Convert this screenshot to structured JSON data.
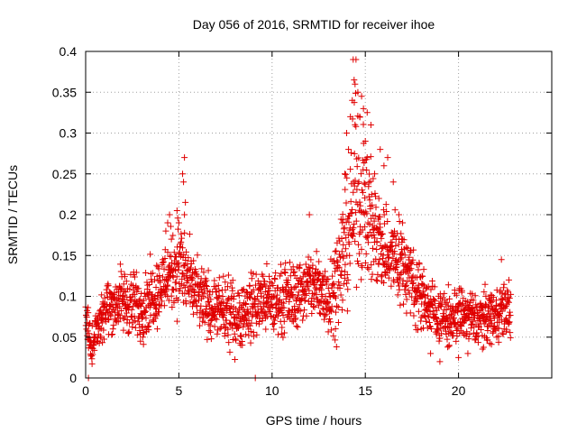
{
  "chart_data": {
    "type": "scatter",
    "title": "Day 056 of 2016, SRMTID for receiver ihoe",
    "xlabel": "GPS time / hours",
    "ylabel": "SRMTID / TECUs",
    "xlim": [
      0,
      25
    ],
    "ylim": [
      0,
      0.4
    ],
    "x_ticks": [
      0,
      5,
      10,
      15,
      20
    ],
    "x_tick_labels": [
      "0",
      "5",
      "10",
      "15",
      "20"
    ],
    "y_ticks": [
      0,
      0.05,
      0.1,
      0.15,
      0.2,
      0.25,
      0.3,
      0.35,
      0.4
    ],
    "y_tick_labels": [
      "0",
      "0.05",
      "0.1",
      "0.15",
      "0.2",
      "0.25",
      "0.3",
      "0.35",
      "0.4"
    ],
    "grid": true,
    "marker": "+",
    "color": "#e00000",
    "series": [
      {
        "name": "SRMTID",
        "trend": {
          "x": [
            0.0,
            0.3,
            0.6,
            1.0,
            1.5,
            2.0,
            2.5,
            3.0,
            3.5,
            4.0,
            4.5,
            5.0,
            5.5,
            6.0,
            6.5,
            7.0,
            7.5,
            8.0,
            8.5,
            9.0,
            9.5,
            10.0,
            10.5,
            11.0,
            11.5,
            12.0,
            12.5,
            13.0,
            13.5,
            14.0,
            14.5,
            15.0,
            15.5,
            16.0,
            16.5,
            17.0,
            17.5,
            18.0,
            18.5,
            19.0,
            19.5,
            20.0,
            20.5,
            21.0,
            21.5,
            22.0,
            22.5,
            22.8
          ],
          "y": [
            0.08,
            0.04,
            0.06,
            0.085,
            0.09,
            0.095,
            0.09,
            0.085,
            0.1,
            0.11,
            0.13,
            0.14,
            0.12,
            0.1,
            0.09,
            0.085,
            0.08,
            0.075,
            0.08,
            0.09,
            0.095,
            0.09,
            0.095,
            0.1,
            0.105,
            0.115,
            0.11,
            0.1,
            0.12,
            0.17,
            0.23,
            0.22,
            0.18,
            0.16,
            0.15,
            0.14,
            0.12,
            0.1,
            0.085,
            0.075,
            0.07,
            0.08,
            0.075,
            0.07,
            0.075,
            0.08,
            0.085,
            0.08
          ]
        },
        "spread": [
          0.02,
          0.015,
          0.02,
          0.025,
          0.025,
          0.03,
          0.03,
          0.03,
          0.03,
          0.03,
          0.035,
          0.045,
          0.035,
          0.03,
          0.03,
          0.025,
          0.03,
          0.03,
          0.03,
          0.03,
          0.03,
          0.03,
          0.03,
          0.03,
          0.03,
          0.03,
          0.035,
          0.035,
          0.045,
          0.06,
          0.08,
          0.07,
          0.05,
          0.045,
          0.04,
          0.04,
          0.035,
          0.03,
          0.025,
          0.025,
          0.025,
          0.025,
          0.025,
          0.025,
          0.025,
          0.025,
          0.025,
          0.02
        ],
        "peaks": [
          [
            0.15,
            0.0
          ],
          [
            9.1,
            0.0
          ],
          [
            4.3,
            0.18
          ],
          [
            4.4,
            0.19
          ],
          [
            4.5,
            0.2
          ],
          [
            4.6,
            0.17
          ],
          [
            4.9,
            0.205
          ],
          [
            5.0,
            0.19
          ],
          [
            5.2,
            0.25
          ],
          [
            5.25,
            0.24
          ],
          [
            5.3,
            0.27
          ],
          [
            5.35,
            0.215
          ],
          [
            5.3,
            0.2
          ],
          [
            12.0,
            0.2
          ],
          [
            13.9,
            0.25
          ],
          [
            14.0,
            0.3
          ],
          [
            14.1,
            0.28
          ],
          [
            14.2,
            0.32
          ],
          [
            14.3,
            0.34
          ],
          [
            14.35,
            0.39
          ],
          [
            14.5,
            0.39
          ],
          [
            14.4,
            0.365
          ],
          [
            14.45,
            0.36
          ],
          [
            14.6,
            0.35
          ],
          [
            14.7,
            0.32
          ],
          [
            14.8,
            0.345
          ],
          [
            14.9,
            0.33
          ],
          [
            15.0,
            0.29
          ],
          [
            15.1,
            0.27
          ],
          [
            15.3,
            0.31
          ],
          [
            15.5,
            0.25
          ],
          [
            15.8,
            0.28
          ],
          [
            16.0,
            0.26
          ],
          [
            16.2,
            0.27
          ],
          [
            16.5,
            0.24
          ],
          [
            16.8,
            0.2
          ],
          [
            17.0,
            0.19
          ],
          [
            17.2,
            0.16
          ],
          [
            17.4,
            0.14
          ],
          [
            18.0,
            0.06
          ],
          [
            18.5,
            0.03
          ],
          [
            19.0,
            0.02
          ],
          [
            19.5,
            0.04
          ],
          [
            20.0,
            0.025
          ],
          [
            20.5,
            0.03
          ],
          [
            22.3,
            0.145
          ],
          [
            22.7,
            0.12
          ]
        ]
      }
    ]
  }
}
